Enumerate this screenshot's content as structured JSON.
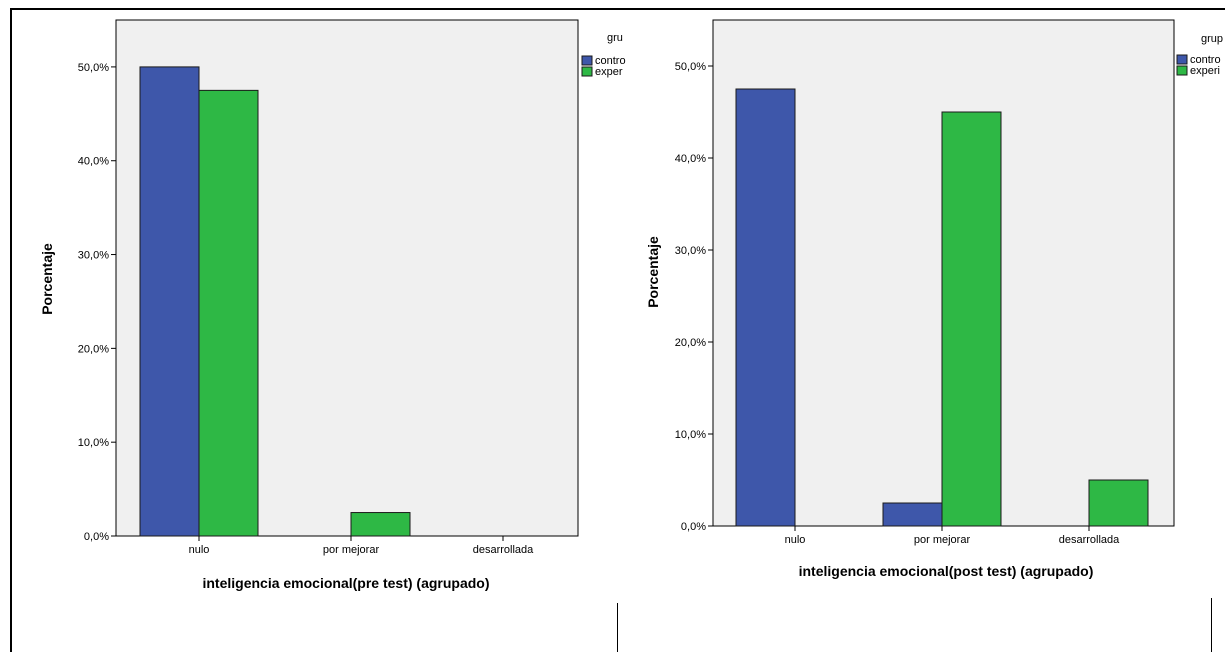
{
  "colors": {
    "control": "#3e57aa",
    "experimental": "#2eb845",
    "plot_bg": "#f0f0f0",
    "bar_stroke": "#1a1a1a"
  },
  "chart_data": [
    {
      "type": "bar",
      "categories": [
        "nulo",
        "por mejorar",
        "desarrollada"
      ],
      "series": [
        {
          "name": "contro",
          "values": [
            50.0,
            0.0,
            0.0
          ]
        },
        {
          "name": "exper",
          "values": [
            47.5,
            2.5,
            0.0
          ]
        }
      ],
      "title": "",
      "xlabel": "inteligencia emocional(pre test) (agrupado)",
      "ylabel": "Porcentaje",
      "ylim": [
        0,
        55
      ],
      "yticks": [
        "0,0%",
        "10,0%",
        "20,0%",
        "30,0%",
        "40,0%",
        "50,0%"
      ],
      "legend_title": "gru",
      "legend_position": "top-right",
      "grid": false
    },
    {
      "type": "bar",
      "categories": [
        "nulo",
        "por mejorar",
        "desarrollada"
      ],
      "series": [
        {
          "name": "contro",
          "values": [
            47.5,
            2.5,
            0.0
          ]
        },
        {
          "name": "experi",
          "values": [
            0.0,
            45.0,
            5.0
          ]
        }
      ],
      "title": "",
      "xlabel": "inteligencia emocional(post test) (agrupado)",
      "ylabel": "Porcentaje",
      "ylim": [
        0,
        55
      ],
      "yticks": [
        "0,0%",
        "10,0%",
        "20,0%",
        "30,0%",
        "40,0%",
        "50,0%"
      ],
      "legend_title": "grup",
      "legend_position": "top-right",
      "grid": false
    }
  ]
}
